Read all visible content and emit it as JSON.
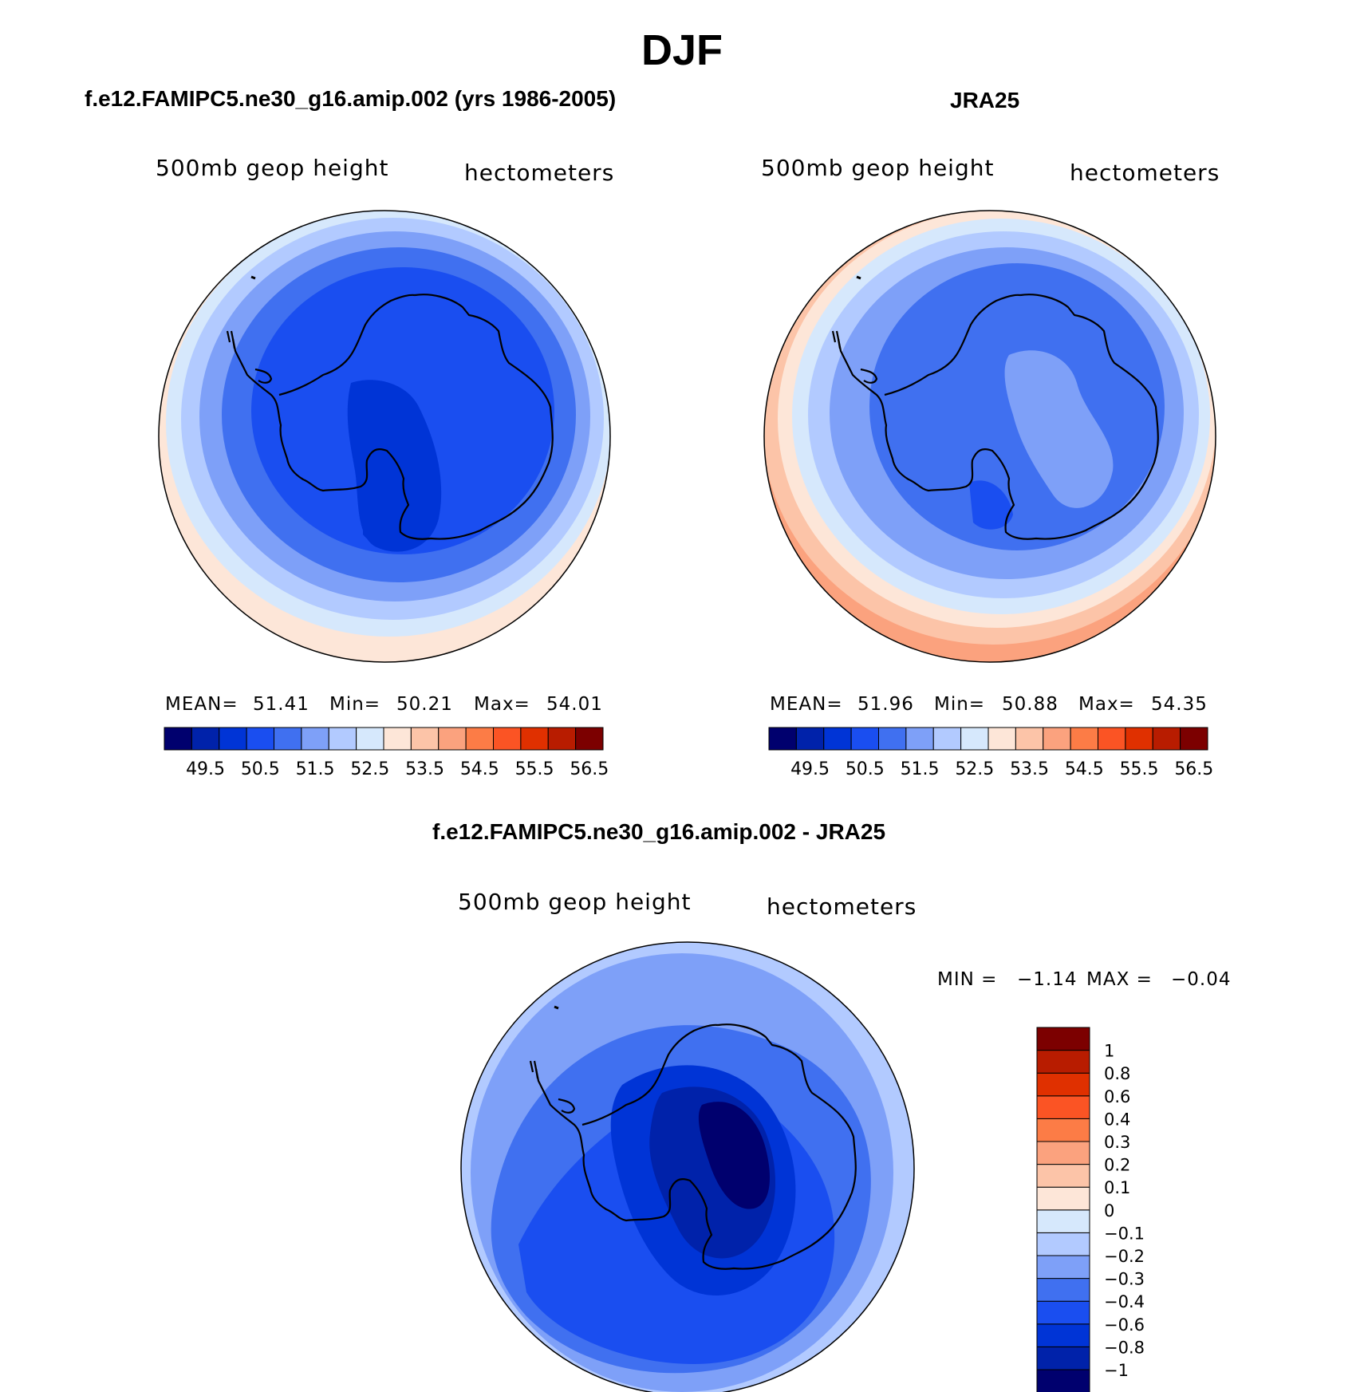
{
  "title": "DJF",
  "panels": [
    {
      "title": "f.e12.FAMIPC5.ne30_g16.amip.002 (yrs 1986-2005)",
      "variable": "500mb  geop  height",
      "units": "hectometers",
      "stats": {
        "mean_label": "MEAN=",
        "mean": "51.41",
        "min_label": "Min=",
        "min": "50.21",
        "max_label": "Max=",
        "max": "54.01"
      }
    },
    {
      "title": "JRA25",
      "variable": "500mb  geop  height",
      "units": "hectometers",
      "stats": {
        "mean_label": "MEAN=",
        "mean": "51.96",
        "min_label": "Min=",
        "min": "50.88",
        "max_label": "Max=",
        "max": "54.35"
      }
    },
    {
      "title": "f.e12.FAMIPC5.ne30_g16.amip.002 - JRA25",
      "variable": "500mb  geop  height",
      "units": "hectometers",
      "stats": {
        "min_label": "MIN =",
        "min": "−1.14",
        "max_label": "MAX =",
        "max": "−0.04"
      }
    }
  ],
  "colorbar_abs": {
    "colors": [
      "#00006e",
      "#0022aa",
      "#0034d6",
      "#1a4ef0",
      "#4070f0",
      "#7ea0f8",
      "#b2caff",
      "#d6e8fc",
      "#fde6d8",
      "#fcc4a8",
      "#fba27e",
      "#fc7c46",
      "#fb5424",
      "#e03000",
      "#b81c00",
      "#7c0000"
    ],
    "labels": [
      "49.5",
      "50.5",
      "51.5",
      "52.5",
      "53.5",
      "54.5",
      "55.5",
      "56.5"
    ]
  },
  "colorbar_diff": {
    "colors": [
      "#00006e",
      "#0022aa",
      "#0034d6",
      "#1a4ef0",
      "#4070f0",
      "#7ea0f8",
      "#b2caff",
      "#d6e8fc",
      "#fde6d8",
      "#fcc4a8",
      "#fba27e",
      "#fc7c46",
      "#fb5424",
      "#e03000",
      "#b81c00",
      "#7c0000"
    ],
    "labels": [
      "−1",
      "−0.8",
      "−0.6",
      "−0.4",
      "−0.3",
      "−0.2",
      "−0.1",
      "0",
      "0.1",
      "0.2",
      "0.3",
      "0.4",
      "0.6",
      "0.8",
      "1"
    ]
  }
}
